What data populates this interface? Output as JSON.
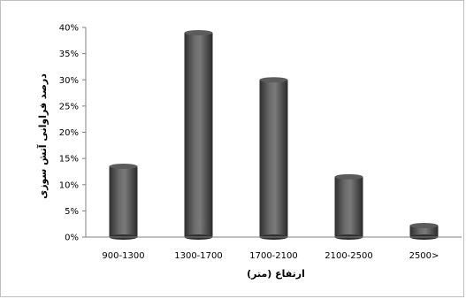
{
  "chart_data": {
    "type": "bar",
    "categories": [
      "900-1300",
      "1300-1700",
      "1700-2100",
      "2100-2500",
      "2500>"
    ],
    "values": [
      0.14,
      0.395,
      0.305,
      0.12,
      0.027
    ],
    "ylim": [
      0,
      0.4
    ],
    "yticks": [
      "0%",
      "5%",
      "10%",
      "15%",
      "20%",
      "25%",
      "30%",
      "35%",
      "40%"
    ],
    "xlabel": "ارتفاع (متر)",
    "ylabel": "درصد فراوانی آتش سوزی",
    "grid": false,
    "legend": "none",
    "bar_color": "#4a4a4a"
  }
}
